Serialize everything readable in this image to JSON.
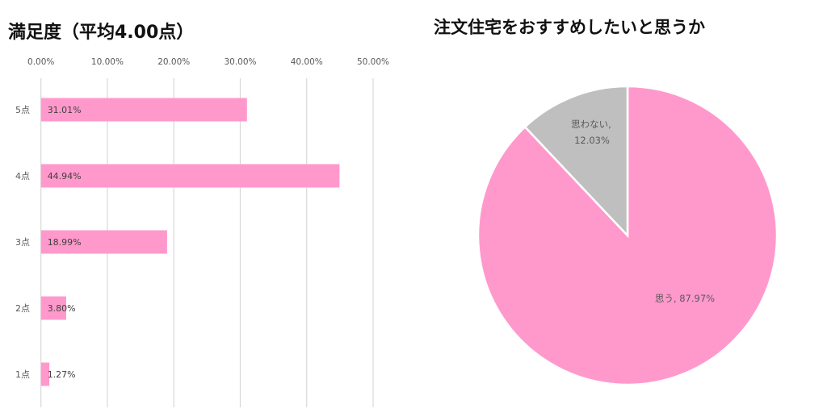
{
  "chart_data": [
    {
      "type": "bar",
      "orientation": "horizontal",
      "title": "満足度（平均4.00点）",
      "categories": [
        "5点",
        "4点",
        "3点",
        "2点",
        "1点"
      ],
      "values": [
        31.01,
        44.94,
        18.99,
        3.8,
        1.27
      ],
      "data_labels": [
        "31.01%",
        "44.94%",
        "18.99%",
        "3.80%",
        "1.27%"
      ],
      "xlim": [
        0,
        50
      ],
      "x_ticks": [
        "0.00%",
        "10.00%",
        "20.00%",
        "30.00%",
        "40.00%",
        "50.00%"
      ],
      "x_tick_values": [
        0,
        10,
        20,
        30,
        40,
        50
      ],
      "x_axis_position": "top",
      "grid": true,
      "color": "#FF99CC"
    },
    {
      "type": "pie",
      "title": "注文住宅をおすすめしたいと思うか",
      "slices": [
        {
          "label": "思う",
          "value": 87.97,
          "data_label": "思う, 87.97%",
          "color": "#FF99CC"
        },
        {
          "label": "思わない",
          "value": 12.03,
          "data_label_line1": "思わない,",
          "data_label_line2": "12.03%",
          "color": "#BFBFBF"
        }
      ],
      "start_angle": "12 o'clock",
      "direction": "clockwise"
    }
  ]
}
